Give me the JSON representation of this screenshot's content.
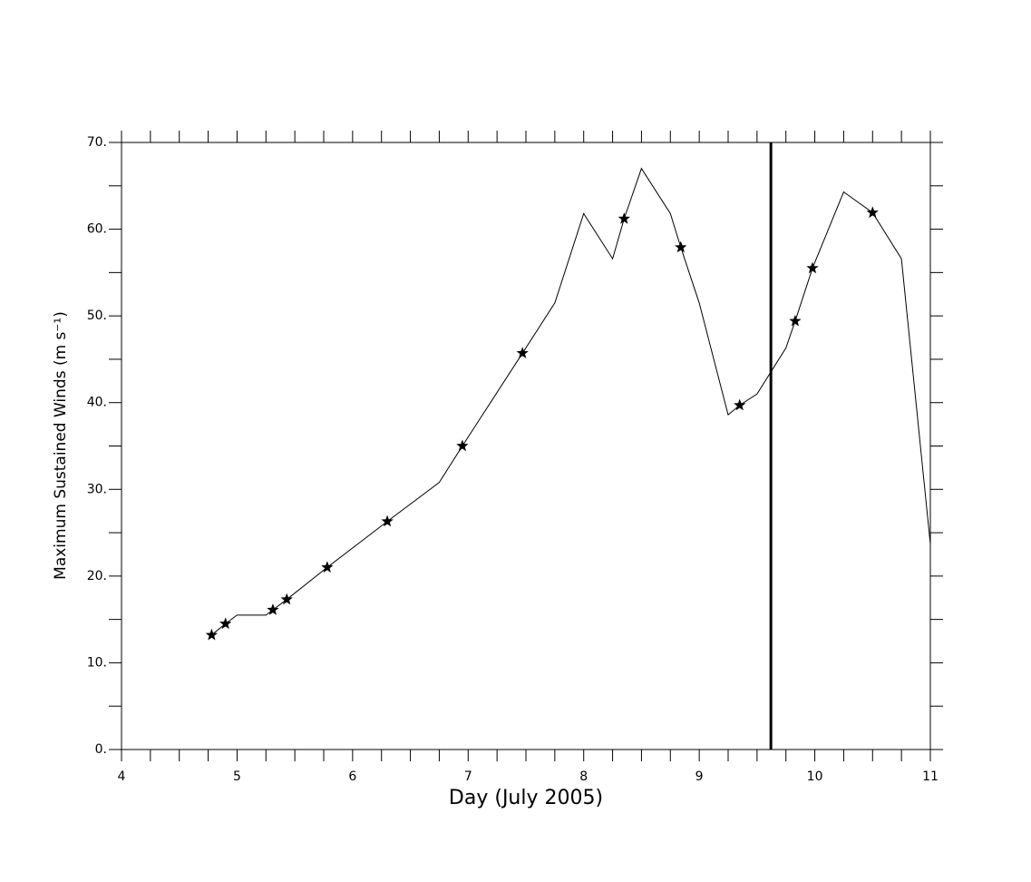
{
  "chart_data": {
    "type": "line",
    "xlabel": "Day (July 2005)",
    "ylabel": "Maximum Sustained Winds (m s⁻¹)",
    "xlim": [
      4,
      11
    ],
    "xticks": [
      4,
      5,
      6,
      7,
      8,
      9,
      10,
      11
    ],
    "xminorticks": [
      4.25,
      4.5,
      4.75,
      5.25,
      5.5,
      5.75,
      6.25,
      6.5,
      6.75,
      7.25,
      7.5,
      7.75,
      8.25,
      8.5,
      8.75,
      9.25,
      9.5,
      9.75,
      10.25,
      10.5,
      10.75
    ],
    "ylim": [
      0,
      70
    ],
    "yticks": [
      {
        "value": 0,
        "label": "0."
      },
      {
        "value": 10,
        "label": "10."
      },
      {
        "value": 20,
        "label": "20."
      },
      {
        "value": 30,
        "label": "30."
      },
      {
        "value": 40,
        "label": "40."
      },
      {
        "value": 50,
        "label": "50."
      },
      {
        "value": 60,
        "label": "60."
      },
      {
        "value": 70,
        "label": "70."
      }
    ],
    "yminorticks": [
      5,
      15,
      25,
      35,
      45,
      55,
      65
    ],
    "vertical_line_x": 9.62,
    "series": [
      {
        "color": "#000000",
        "x": [
          4.78,
          4.9,
          5.0,
          5.25,
          5.31,
          5.43,
          5.78,
          6.3,
          6.75,
          6.95,
          7.47,
          7.75,
          8.0,
          8.25,
          8.35,
          8.5,
          8.75,
          8.84,
          9.0,
          9.25,
          9.35,
          9.5,
          9.75,
          9.83,
          9.98,
          10.25,
          10.5,
          10.75,
          11.0
        ],
        "values": [
          13.2,
          14.5,
          15.5,
          15.5,
          16.1,
          17.3,
          21.0,
          26.3,
          30.8,
          35.0,
          45.7,
          51.5,
          61.8,
          56.6,
          61.2,
          67.0,
          61.8,
          57.9,
          51.5,
          38.6,
          39.7,
          41.0,
          46.3,
          49.4,
          55.5,
          64.3,
          61.9,
          56.6,
          23.7
        ]
      },
      {
        "color": "#000000",
        "marker": "star",
        "x": [
          4.78,
          4.9,
          5.31,
          5.43,
          5.78,
          6.3,
          6.95,
          7.47,
          8.35,
          8.84,
          9.35,
          9.83,
          9.98,
          10.5
        ],
        "values": [
          13.2,
          14.5,
          16.1,
          17.3,
          21.0,
          26.3,
          35.0,
          45.7,
          61.2,
          57.9,
          39.7,
          49.4,
          55.5,
          61.9
        ]
      }
    ]
  }
}
